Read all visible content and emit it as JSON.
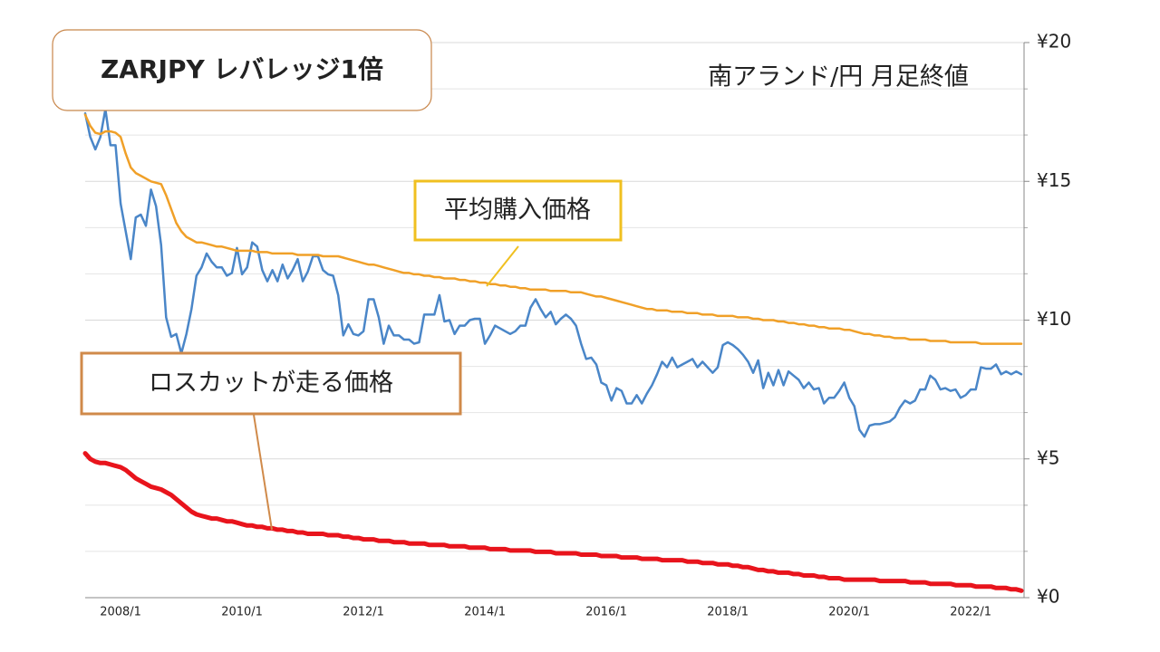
{
  "chart_data": {
    "type": "line",
    "title": "ZARJPY レバレッジ1倍",
    "subtitle": "南アランド/円 月足終値",
    "annotations": [
      "平均購入価格",
      "ロスカットが走る価格"
    ],
    "categories": [
      null,
      null,
      null,
      null,
      null,
      null,
      null,
      "2008/1",
      null,
      null,
      null,
      null,
      null,
      null,
      null,
      null,
      null,
      null,
      null,
      null,
      null,
      null,
      null,
      null,
      null,
      null,
      null,
      null,
      null,
      null,
      null,
      "2010/1",
      null,
      null,
      null,
      null,
      null,
      null,
      null,
      null,
      null,
      null,
      null,
      null,
      null,
      null,
      null,
      null,
      null,
      null,
      null,
      null,
      null,
      null,
      null,
      "2012/1",
      null,
      null,
      null,
      null,
      null,
      null,
      null,
      null,
      null,
      null,
      null,
      null,
      null,
      null,
      null,
      null,
      null,
      null,
      null,
      null,
      null,
      null,
      null,
      "2014/1",
      null,
      null,
      null,
      null,
      null,
      null,
      null,
      null,
      null,
      null,
      null,
      null,
      null,
      null,
      null,
      null,
      null,
      null,
      null,
      null,
      null,
      null,
      null,
      "2016/1",
      null,
      null,
      null,
      null,
      null,
      null,
      null,
      null,
      null,
      null,
      null,
      null,
      null,
      null,
      null,
      null,
      null,
      null,
      null,
      null,
      null,
      null,
      null,
      "2018/1",
      null,
      null,
      null,
      null,
      null,
      null,
      null,
      null,
      null,
      null,
      null,
      null,
      null,
      null,
      null,
      null,
      null,
      null,
      null,
      null,
      null,
      null,
      null,
      "2020/1",
      null,
      null,
      null,
      null,
      null,
      null,
      null,
      null,
      null,
      null,
      null,
      null,
      null,
      null,
      null,
      null,
      null,
      null,
      null,
      null,
      null,
      null,
      null,
      "2022/1",
      null,
      null,
      null,
      null,
      null,
      null,
      null,
      null,
      null,
      null
    ],
    "series": [
      {
        "color": "#4a86c8",
        "values": [
          17.45,
          16.6,
          16.15,
          16.6,
          17.6,
          16.3,
          16.3,
          14.2,
          13.2,
          12.2,
          13.7,
          13.8,
          13.4,
          14.7,
          14.1,
          12.7,
          10.1,
          9.4,
          9.5,
          8.8,
          9.5,
          10.4,
          11.6,
          11.9,
          12.4,
          12.1,
          11.9,
          11.9,
          11.6,
          11.7,
          12.6,
          11.65,
          11.9,
          12.8,
          12.65,
          11.8,
          11.4,
          11.8,
          11.4,
          12.0,
          11.5,
          11.8,
          12.2,
          11.4,
          11.75,
          12.3,
          12.3,
          11.8,
          11.65,
          11.6,
          10.9,
          9.45,
          9.85,
          9.5,
          9.45,
          9.6,
          10.75,
          10.75,
          10.1,
          9.15,
          9.8,
          9.45,
          9.45,
          9.3,
          9.3,
          9.15,
          9.2,
          10.2,
          10.2,
          10.2,
          10.9,
          9.95,
          10.0,
          9.5,
          9.8,
          9.8,
          10.0,
          10.05,
          10.05,
          9.15,
          9.45,
          9.8,
          9.7,
          9.6,
          9.5,
          9.6,
          9.8,
          9.8,
          10.45,
          10.75,
          10.4,
          10.1,
          10.3,
          9.85,
          10.05,
          10.2,
          10.05,
          9.8,
          9.15,
          8.6,
          8.65,
          8.4,
          7.75,
          7.65,
          7.1,
          7.55,
          7.45,
          7.0,
          7.0,
          7.3,
          7.0,
          7.35,
          7.65,
          8.05,
          8.5,
          8.3,
          8.65,
          8.3,
          8.4,
          8.5,
          8.6,
          8.3,
          8.5,
          8.3,
          8.1,
          8.3,
          9.1,
          9.2,
          9.1,
          8.95,
          8.75,
          8.5,
          8.1,
          8.55,
          7.55,
          8.1,
          7.65,
          8.2,
          7.65,
          8.15,
          8.0,
          7.85,
          7.55,
          7.75,
          7.5,
          7.55,
          7.0,
          7.2,
          7.2,
          7.45,
          7.75,
          7.2,
          6.9,
          6.05,
          5.8,
          6.2,
          6.25,
          6.25,
          6.3,
          6.35,
          6.5,
          6.85,
          7.1,
          7.0,
          7.1,
          7.5,
          7.5,
          8.0,
          7.85,
          7.5,
          7.55,
          7.45,
          7.5,
          7.2,
          7.3,
          7.5,
          7.5,
          8.3,
          8.25,
          8.25,
          8.4,
          8.05,
          8.15,
          8.05,
          8.15,
          8.05
        ]
      },
      {
        "color": "#f0a028",
        "values": [
          17.4,
          17.0,
          16.75,
          16.7,
          16.8,
          16.8,
          16.75,
          16.6,
          16.0,
          15.5,
          15.3,
          15.2,
          15.1,
          15.0,
          14.95,
          14.9,
          14.5,
          14.0,
          13.5,
          13.2,
          13.0,
          12.9,
          12.8,
          12.8,
          12.75,
          12.7,
          12.65,
          12.65,
          12.6,
          12.55,
          12.5,
          12.5,
          12.5,
          12.5,
          12.45,
          12.45,
          12.45,
          12.4,
          12.4,
          12.4,
          12.4,
          12.4,
          12.35,
          12.35,
          12.35,
          12.35,
          12.35,
          12.3,
          12.3,
          12.3,
          12.3,
          12.25,
          12.2,
          12.15,
          12.1,
          12.05,
          12.0,
          12.0,
          11.95,
          11.9,
          11.85,
          11.8,
          11.75,
          11.7,
          11.7,
          11.65,
          11.65,
          11.6,
          11.6,
          11.55,
          11.55,
          11.5,
          11.5,
          11.5,
          11.45,
          11.45,
          11.4,
          11.4,
          11.35,
          11.35,
          11.3,
          11.3,
          11.25,
          11.25,
          11.2,
          11.2,
          11.15,
          11.15,
          11.1,
          11.1,
          11.1,
          11.1,
          11.05,
          11.05,
          11.05,
          11.05,
          11.0,
          11.0,
          11.0,
          10.95,
          10.9,
          10.85,
          10.85,
          10.8,
          10.75,
          10.7,
          10.65,
          10.6,
          10.55,
          10.5,
          10.45,
          10.4,
          10.4,
          10.35,
          10.35,
          10.35,
          10.3,
          10.3,
          10.3,
          10.25,
          10.25,
          10.25,
          10.2,
          10.2,
          10.2,
          10.15,
          10.15,
          10.15,
          10.15,
          10.1,
          10.1,
          10.1,
          10.05,
          10.05,
          10.0,
          10.0,
          10.0,
          9.95,
          9.95,
          9.9,
          9.9,
          9.85,
          9.85,
          9.8,
          9.8,
          9.75,
          9.75,
          9.7,
          9.7,
          9.7,
          9.65,
          9.65,
          9.6,
          9.55,
          9.5,
          9.5,
          9.45,
          9.45,
          9.4,
          9.4,
          9.35,
          9.35,
          9.35,
          9.3,
          9.3,
          9.3,
          9.3,
          9.25,
          9.25,
          9.25,
          9.25,
          9.2,
          9.2,
          9.2,
          9.2,
          9.2,
          9.2,
          9.15,
          9.15,
          9.15,
          9.15,
          9.15,
          9.15,
          9.15,
          9.15,
          9.15
        ]
      },
      {
        "color": "#e8141c",
        "values": [
          5.2,
          5.0,
          4.9,
          4.85,
          4.85,
          4.8,
          4.75,
          4.7,
          4.6,
          4.45,
          4.3,
          4.2,
          4.1,
          4.0,
          3.95,
          3.9,
          3.8,
          3.7,
          3.55,
          3.4,
          3.25,
          3.1,
          3.0,
          2.95,
          2.9,
          2.85,
          2.85,
          2.8,
          2.75,
          2.75,
          2.7,
          2.65,
          2.6,
          2.6,
          2.55,
          2.55,
          2.5,
          2.5,
          2.45,
          2.45,
          2.4,
          2.4,
          2.35,
          2.35,
          2.3,
          2.3,
          2.3,
          2.3,
          2.25,
          2.25,
          2.25,
          2.2,
          2.2,
          2.15,
          2.15,
          2.1,
          2.1,
          2.1,
          2.05,
          2.05,
          2.05,
          2.0,
          2.0,
          2.0,
          1.95,
          1.95,
          1.95,
          1.95,
          1.9,
          1.9,
          1.9,
          1.9,
          1.85,
          1.85,
          1.85,
          1.85,
          1.8,
          1.8,
          1.8,
          1.8,
          1.75,
          1.75,
          1.75,
          1.75,
          1.7,
          1.7,
          1.7,
          1.7,
          1.7,
          1.65,
          1.65,
          1.65,
          1.65,
          1.6,
          1.6,
          1.6,
          1.6,
          1.6,
          1.55,
          1.55,
          1.55,
          1.55,
          1.5,
          1.5,
          1.5,
          1.5,
          1.45,
          1.45,
          1.45,
          1.45,
          1.4,
          1.4,
          1.4,
          1.4,
          1.35,
          1.35,
          1.35,
          1.35,
          1.35,
          1.3,
          1.3,
          1.3,
          1.25,
          1.25,
          1.25,
          1.2,
          1.2,
          1.2,
          1.15,
          1.15,
          1.1,
          1.1,
          1.05,
          1.0,
          1.0,
          0.95,
          0.95,
          0.9,
          0.9,
          0.9,
          0.85,
          0.85,
          0.8,
          0.8,
          0.8,
          0.75,
          0.75,
          0.7,
          0.7,
          0.7,
          0.65,
          0.65,
          0.65,
          0.65,
          0.65,
          0.65,
          0.65,
          0.6,
          0.6,
          0.6,
          0.6,
          0.6,
          0.6,
          0.55,
          0.55,
          0.55,
          0.55,
          0.5,
          0.5,
          0.5,
          0.5,
          0.5,
          0.45,
          0.45,
          0.45,
          0.45,
          0.4,
          0.4,
          0.4,
          0.4,
          0.35,
          0.35,
          0.35,
          0.3,
          0.3,
          0.25
        ]
      }
    ],
    "ylim": [
      0,
      20
    ],
    "yticks": [
      {
        "value": 0,
        "label": "¥0"
      },
      {
        "value": 5,
        "label": "¥5"
      },
      {
        "value": 10,
        "label": "¥10"
      },
      {
        "value": 15,
        "label": "¥15"
      },
      {
        "value": 20,
        "label": "¥20"
      }
    ],
    "y_minor_ticks": [
      1.67,
      3.33,
      6.67,
      8.33,
      11.67,
      13.33,
      16.67,
      18.33
    ],
    "y_axis_side": "right",
    "grid": true
  }
}
